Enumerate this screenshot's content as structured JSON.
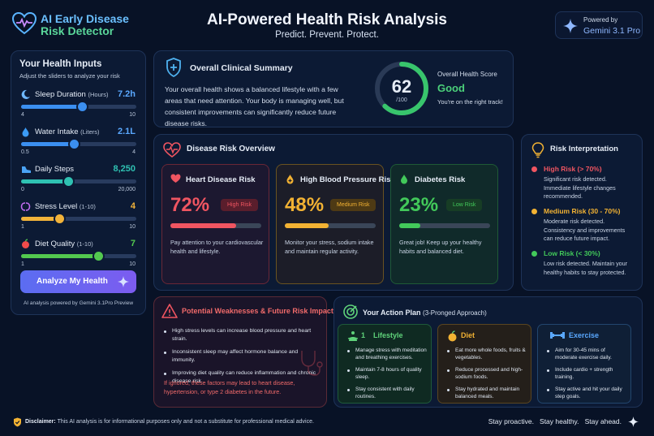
{
  "header": {
    "logo_line1": "AI Early Disease",
    "logo_line2": "Risk Detector",
    "title": "AI-Powered Health Risk Analysis",
    "subtitle": "Predict. Prevent. Protect.",
    "powered_label": "Powered by",
    "powered_model": "Gemini 3.1 Pro"
  },
  "inputs": {
    "title": "Your Health Inputs",
    "subtitle": "Adjust the sliders to analyze your risk",
    "sliders": [
      {
        "label": "Sleep Duration",
        "unit": "(Hours)",
        "value": "7.2h",
        "min": "4",
        "max": "10",
        "level": 0.53,
        "color": "#3b8ff0"
      },
      {
        "label": "Water Intake",
        "unit": "(Liters)",
        "value": "2.1L",
        "min": "0.5",
        "max": "4",
        "level": 0.46,
        "color": "#3b8ff0"
      },
      {
        "label": "Daily Steps",
        "unit": "",
        "value": "8,250",
        "min": "0",
        "max": "20,000",
        "level": 0.41,
        "color": "#2fc1b2"
      },
      {
        "label": "Stress Level",
        "unit": "(1-10)",
        "value": "4",
        "min": "1",
        "max": "10",
        "level": 0.33,
        "color": "#f2b33a"
      },
      {
        "label": "Diet Quality",
        "unit": "(1-10)",
        "value": "7",
        "min": "1",
        "max": "10",
        "level": 0.67,
        "color": "#53c94f"
      }
    ],
    "analyze_button": "Analyze My Health",
    "powered_note": "AI analysis powered by Gemini 3.1Pro Preview"
  },
  "summary": {
    "title": "Overall Clinical Summary",
    "text": "Your overall health shows a balanced lifestyle with a few areas that need attention. Your body is managing well, but consistent improvements can significantly reduce future disease risks.",
    "score": "62",
    "score_max": "/100",
    "score_value": 62,
    "score_label": "Overall Health Score",
    "score_word": "Good",
    "score_note": "You're on the right track!"
  },
  "risk_overview": {
    "title": "Disease Risk Overview",
    "cards": [
      {
        "name": "Heart Disease Risk",
        "pct": "72%",
        "value": 72,
        "badge": "High Risk",
        "desc": "Pay attention to your cardiovascular health and lifestyle.",
        "color": "#f05561"
      },
      {
        "name": "High Blood Pressure Risk",
        "pct": "48%",
        "value": 48,
        "badge": "Medium Risk",
        "desc": "Monitor your stress, sodium intake and maintain regular activity.",
        "color": "#f2b233"
      },
      {
        "name": "Diabetes Risk",
        "pct": "23%",
        "value": 23,
        "badge": "Low Risk",
        "desc": "Great job! Keep up your healthy habits and balanced diet.",
        "color": "#42c95a"
      }
    ]
  },
  "interpretation": {
    "title": "Risk Interpretation",
    "items": [
      {
        "heading": "High Risk (> 70%)",
        "desc": "Significant risk detected. Immediate lifestyle changes recommended.",
        "color": "#f05561"
      },
      {
        "heading": "Medium Risk (30 - 70%)",
        "desc": "Moderate risk detected. Consistency and improvements can reduce future impact.",
        "color": "#f2b233"
      },
      {
        "heading": "Low Risk (< 30%)",
        "desc": "Low risk detected. Maintain your healthy habits to stay protected.",
        "color": "#42c95a"
      }
    ]
  },
  "weaknesses": {
    "title": "Potential Weaknesses & Future Risk Impact",
    "items": [
      "High stress levels can increase blood pressure and heart strain.",
      "Inconsistent sleep may affect hormone balance and immunity.",
      "Improving diet quality can reduce inflammation and chronic disease risk."
    ],
    "warning": "If ignored, these factors may lead to heart disease, hypertension, or type 2 diabetes in the future."
  },
  "action_plan": {
    "title": "Your Action Plan",
    "title_suffix": "(3-Pronged Approach)",
    "columns": [
      {
        "heading": "Lifestyle",
        "number": "1",
        "items": [
          "Manage stress with meditation and breathing exercises.",
          "Maintain 7-8 hours of quality sleep.",
          "Stay consistent  with daily routines."
        ],
        "color": "#5fd37a"
      },
      {
        "heading": "Diet",
        "number": "",
        "items": [
          "Eat more whole foods, fruits & vegetables.",
          "Reduce processed and high-sodium foods.",
          "Stay hydrated and maintain balanced meals."
        ],
        "color": "#f2b233"
      },
      {
        "heading": "Exercise",
        "number": "",
        "items": [
          "Aim for 30-45 mins of moderate exercise daily.",
          "Include cardio + strength training.",
          "Stay active and hit your daily step goals."
        ],
        "color": "#5aa8ff"
      }
    ]
  },
  "footer": {
    "disclaimer_label": "Disclaimer:",
    "disclaimer_text": "This AI analysis is for informational purposes only and not a substitute for professional medical advice.",
    "tagline": "Stay proactive.   Stay healthy.   Stay ahead."
  }
}
